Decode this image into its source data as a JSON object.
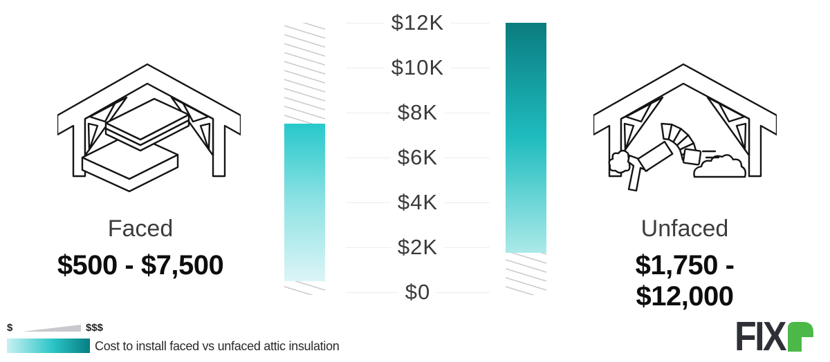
{
  "chart_data": {
    "type": "bar",
    "title": "Cost to install faced vs unfaced attic insulation",
    "unit": "USD",
    "categories": [
      "Faced",
      "Unfaced"
    ],
    "ranges": [
      {
        "label": "Faced",
        "min": 500,
        "max": 7500,
        "display": "$500 - $7,500"
      },
      {
        "label": "Unfaced",
        "min": 1750,
        "max": 12000,
        "display": "$1,750 - $12,000"
      }
    ],
    "axis": {
      "min": 0,
      "max": 12000,
      "tick_labels": [
        "$12K",
        "$10K",
        "$8K",
        "$6K",
        "$4K",
        "$2K",
        "$0"
      ],
      "tick_values": [
        12000,
        10000,
        8000,
        6000,
        4000,
        2000,
        0
      ],
      "gridlines": true
    },
    "legend": {
      "cheap_symbol": "$",
      "expensive_symbol": "$$$"
    }
  },
  "icons": {
    "faced": "attic-with-insulation-batts-icon",
    "unfaced": "attic-with-blown-insulation-icon"
  },
  "branding": {
    "logo_text": "FIX",
    "logo_mark": "fixr-r-mark"
  },
  "colors": {
    "faced_bar_gradient": [
      "#27c8cb",
      "#8fe2e4",
      "#dcf5f6"
    ],
    "unfaced_bar_gradient": [
      "#0a7c7f",
      "#1fbcbf",
      "#abeae9"
    ],
    "legend_gradient": [
      "#c9f1f2",
      "#2cc5c8",
      "#067e81"
    ],
    "hatch_line": "#cccccc",
    "gridline": "#ececec",
    "tick_text": "#3a3a3a",
    "category_text": "#3d3d3d",
    "price_text": "#0d0d0d",
    "icon_stroke": "#141414",
    "triangle": "#c9c9cd",
    "logo_dark": "#2d3036",
    "logo_green": "#4cb848"
  }
}
